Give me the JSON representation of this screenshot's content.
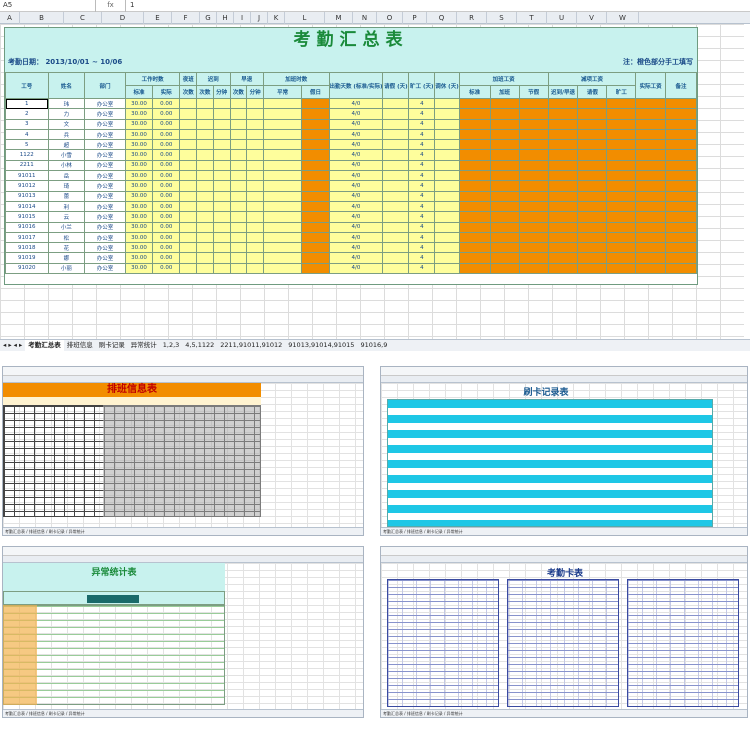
{
  "formula_bar": {
    "cell_ref": "A5",
    "fx": "fx",
    "value": "1"
  },
  "columns": [
    "A",
    "B",
    "C",
    "D",
    "E",
    "F",
    "G",
    "H",
    "I",
    "J",
    "K",
    "L",
    "M",
    "N",
    "O",
    "P",
    "Q",
    "R",
    "S",
    "T",
    "U",
    "V",
    "W"
  ],
  "summary": {
    "title": "考勤汇总表",
    "period_label": "考勤日期：",
    "period_value": "2013/10/01 ~ 10/06",
    "note": "注：橙色部分手工填写",
    "headers": {
      "id": "工号",
      "name": "姓名",
      "dept": "部门",
      "work_time": "工作时数",
      "std": "标准",
      "actual": "实际",
      "night": "夜班",
      "late": "迟到",
      "early": "早退",
      "times": "次数",
      "minutes": "分钟",
      "overtime": "加班时数",
      "weekday": "平常",
      "holiday": "假日",
      "attendance": "出勤天数\n(标准/实际)",
      "leave": "请假\n(天)",
      "absent": "旷工\n(天)",
      "off": "调休\n(天)",
      "extra_pay": "加班工资",
      "ot_normal": "标准",
      "ot_add": "加班",
      "ot_holiday": "节假",
      "deduct": "减项工资",
      "deduct_late": "迟到/早退",
      "deduct_leave": "请假",
      "deduct_absent": "旷工",
      "actual_pay": "实际工资",
      "remark": "备注"
    },
    "rows": [
      {
        "id": "1",
        "name": "玮",
        "dept": "办公室",
        "std": "30.00",
        "actual": "0.00",
        "att": "4/0",
        "absent": "4"
      },
      {
        "id": "2",
        "name": "力",
        "dept": "办公室",
        "std": "30.00",
        "actual": "0.00",
        "att": "4/0",
        "absent": "4"
      },
      {
        "id": "3",
        "name": "文",
        "dept": "办公室",
        "std": "30.00",
        "actual": "0.00",
        "att": "4/0",
        "absent": "4"
      },
      {
        "id": "4",
        "name": "兵",
        "dept": "办公室",
        "std": "30.00",
        "actual": "0.00",
        "att": "4/0",
        "absent": "4"
      },
      {
        "id": "5",
        "name": "超",
        "dept": "办公室",
        "std": "30.00",
        "actual": "0.00",
        "att": "4/0",
        "absent": "4"
      },
      {
        "id": "1122",
        "name": "小雪",
        "dept": "办公室",
        "std": "30.00",
        "actual": "0.00",
        "att": "4/0",
        "absent": "4"
      },
      {
        "id": "2211",
        "name": "小林",
        "dept": "办公室",
        "std": "30.00",
        "actual": "0.00",
        "att": "4/0",
        "absent": "4"
      },
      {
        "id": "91011",
        "name": "岳",
        "dept": "办公室",
        "std": "30.00",
        "actual": "0.00",
        "att": "4/0",
        "absent": "4"
      },
      {
        "id": "91012",
        "name": "琦",
        "dept": "办公室",
        "std": "30.00",
        "actual": "0.00",
        "att": "4/0",
        "absent": "4"
      },
      {
        "id": "91013",
        "name": "蕾",
        "dept": "办公室",
        "std": "30.00",
        "actual": "0.00",
        "att": "4/0",
        "absent": "4"
      },
      {
        "id": "91014",
        "name": "利",
        "dept": "办公室",
        "std": "30.00",
        "actual": "0.00",
        "att": "4/0",
        "absent": "4"
      },
      {
        "id": "91015",
        "name": "云",
        "dept": "办公室",
        "std": "30.00",
        "actual": "0.00",
        "att": "4/0",
        "absent": "4"
      },
      {
        "id": "91016",
        "name": "小兰",
        "dept": "办公室",
        "std": "30.00",
        "actual": "0.00",
        "att": "4/0",
        "absent": "4"
      },
      {
        "id": "91017",
        "name": "松",
        "dept": "办公室",
        "std": "30.00",
        "actual": "0.00",
        "att": "4/0",
        "absent": "4"
      },
      {
        "id": "91018",
        "name": "花",
        "dept": "办公室",
        "std": "30.00",
        "actual": "0.00",
        "att": "4/0",
        "absent": "4"
      },
      {
        "id": "91019",
        "name": "娜",
        "dept": "办公室",
        "std": "30.00",
        "actual": "0.00",
        "att": "4/0",
        "absent": "4"
      },
      {
        "id": "91020",
        "name": "小丽",
        "dept": "办公室",
        "std": "30.00",
        "actual": "0.00",
        "att": "4/0",
        "absent": "4"
      }
    ]
  },
  "sheet_tabs": [
    "考勤汇总表",
    "排班信息",
    "刷卡记录",
    "异常统计",
    "1,2,3",
    "4,5,1122",
    "2211,91011,91012",
    "91013,91014,91015",
    "91016,9"
  ],
  "thumbnails": {
    "schedule": {
      "title": "排班信息表",
      "tabs": "考勤汇总表 / 排班信息 / 刷卡记录 / 异常统计"
    },
    "punch": {
      "title": "刷卡记录表",
      "tabs": "考勤汇总表 / 排班信息 / 刷卡记录 / 异常统计"
    },
    "exceptions": {
      "title": "异常统计表",
      "tabs": "考勤汇总表 / 排班信息 / 刷卡记录 / 异常统计"
    },
    "timecard": {
      "title": "考勤卡表",
      "tabs": "考勤汇总表 / 排班信息 / 刷卡记录 / 异常统计"
    }
  },
  "colors": {
    "title_band": "#c8f2ee",
    "yellow": "#fefe9c",
    "orange": "#f28d00",
    "title_text": "#1a8a3a"
  }
}
